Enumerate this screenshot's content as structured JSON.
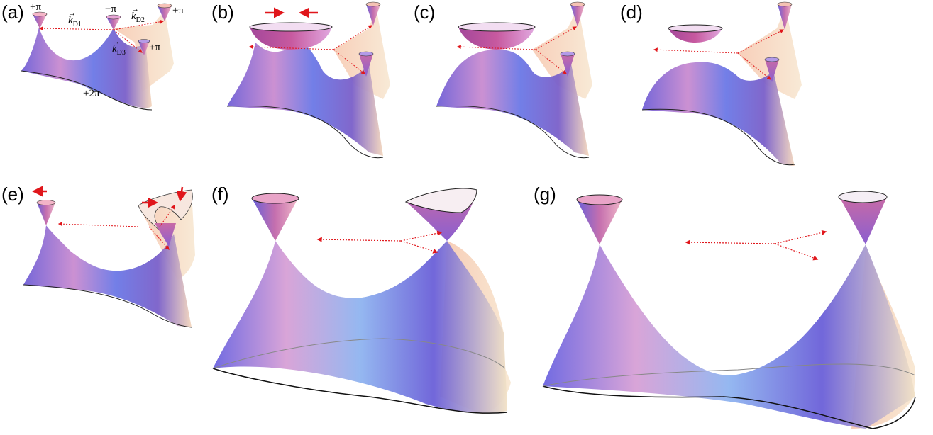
{
  "panels": [
    {
      "label": "(a)"
    },
    {
      "label": "(b)"
    },
    {
      "label": "(c)"
    },
    {
      "label": "(d)"
    },
    {
      "label": "(e)"
    },
    {
      "label": "(f)"
    },
    {
      "label": "(g)"
    }
  ],
  "annotations_a": {
    "cone1_charge": "+π",
    "cone2_charge": "−π",
    "cone3_charge": "+π",
    "cone4_charge": "+π",
    "bottom_charge": "+2π",
    "k_d1": "k",
    "k_d1_sub": "D1",
    "k_d2": "k",
    "k_d2_sub": "D2",
    "k_d3": "k",
    "k_d3_sub": "D3"
  },
  "colors": {
    "surface_violet": "#7b68d8",
    "surface_pink": "#d58fc9",
    "surface_blue": "#5d6de0",
    "surface_peach": "#f3c9b0",
    "arrow_red": "#e0161b",
    "dotted_red": "#e0161b"
  }
}
